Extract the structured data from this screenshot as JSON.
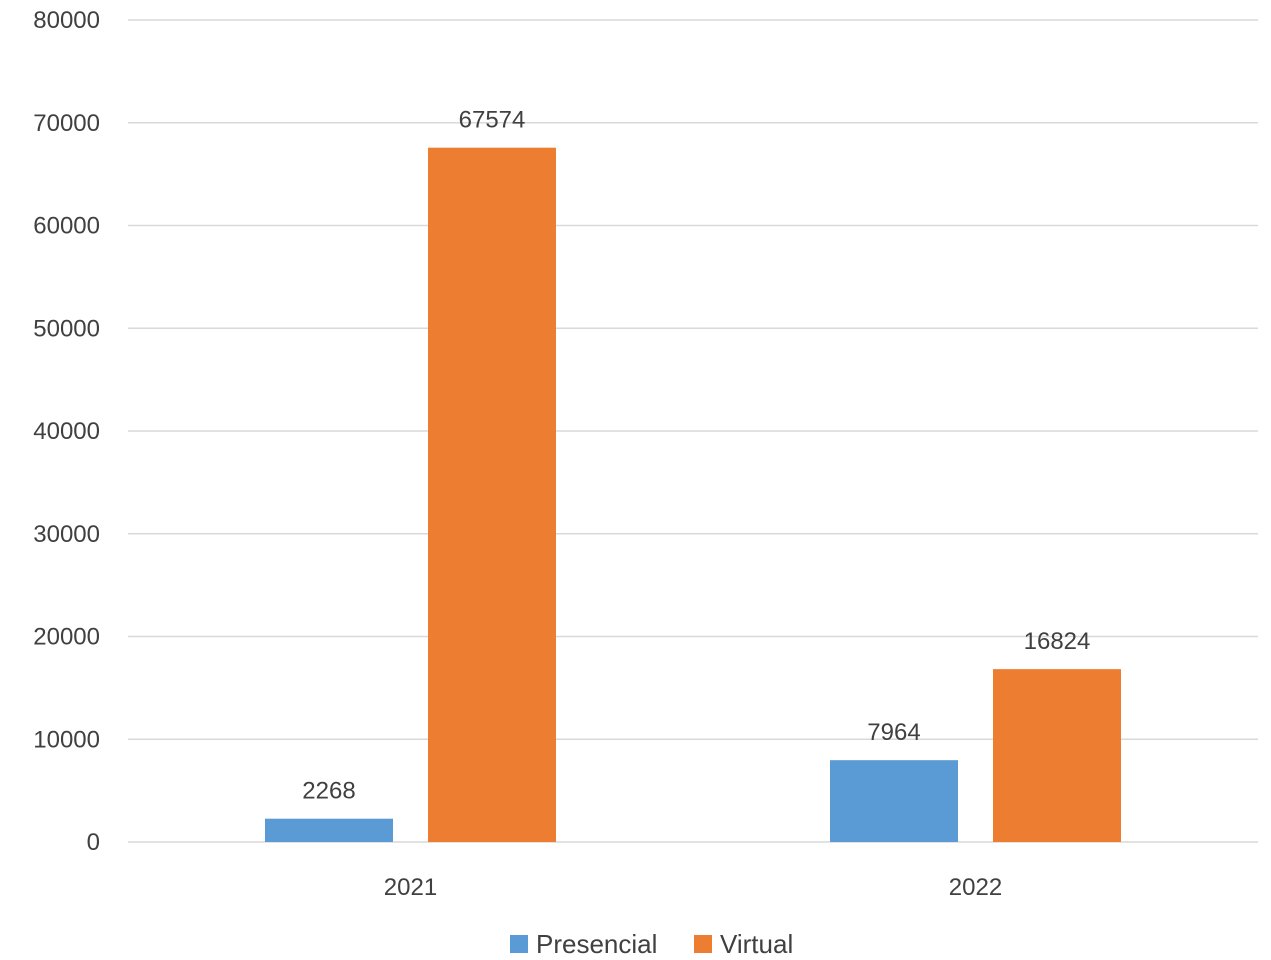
{
  "chart_data": {
    "type": "bar",
    "title": "",
    "xlabel": "",
    "ylabel": "",
    "categories": [
      "2021",
      "2022"
    ],
    "series": [
      {
        "name": "Presencial",
        "values": [
          2268,
          7964
        ],
        "color": "#5b9bd5"
      },
      {
        "name": "Virtual",
        "values": [
          67574,
          16824
        ],
        "color": "#ed7d31"
      }
    ],
    "ylim": [
      0,
      80000
    ],
    "yticks": [
      "0",
      "10000",
      "20000",
      "30000",
      "40000",
      "50000",
      "60000",
      "70000",
      "80000"
    ],
    "data_labels": [
      [
        "2268",
        "7964"
      ],
      [
        "67574",
        "16824"
      ]
    ],
    "grid": true,
    "legend_position": "bottom"
  }
}
